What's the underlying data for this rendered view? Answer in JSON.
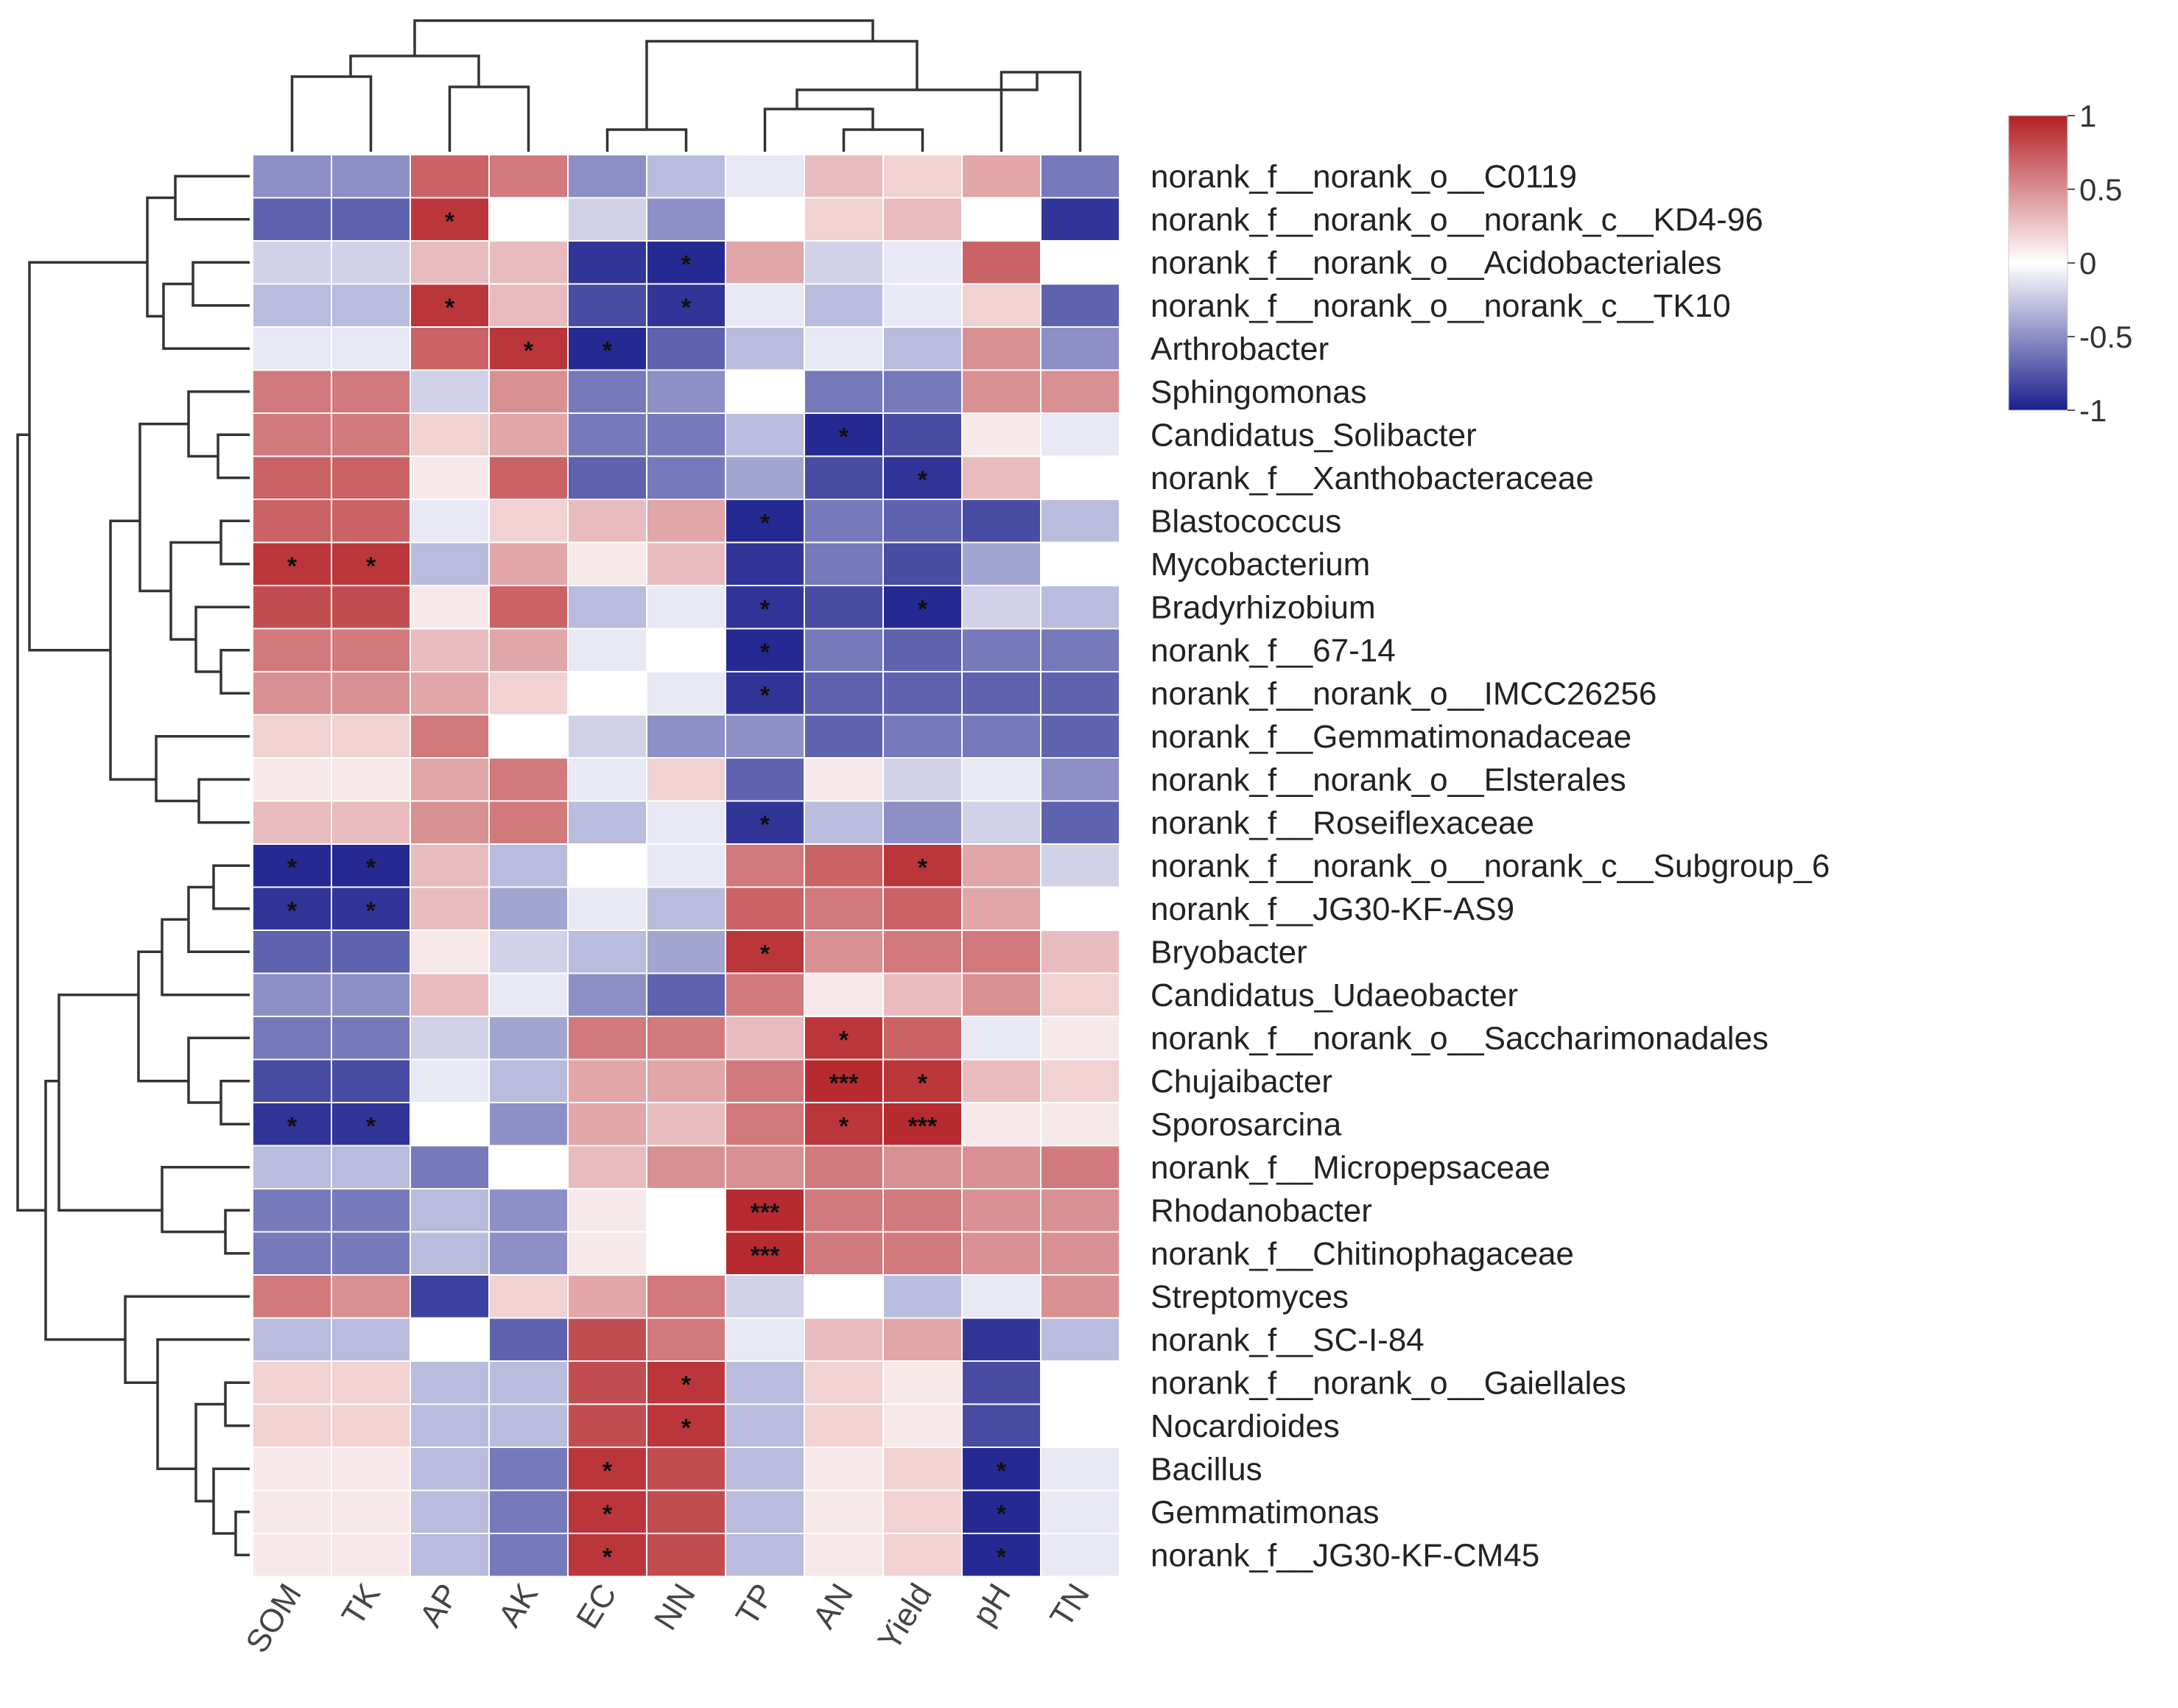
{
  "chart_data": {
    "type": "heatmap",
    "title": "",
    "columns": [
      "SOM",
      "TK",
      "AP",
      "AK",
      "EC",
      "NN",
      "TP",
      "AN",
      "Yield",
      "pH",
      "TN"
    ],
    "rows": [
      "norank_f__norank_o__C0119",
      "norank_f__norank_o__norank_c__KD4-96",
      "norank_f__norank_o__Acidobacteriales",
      "norank_f__norank_o__norank_c__TK10",
      "Arthrobacter",
      "Sphingomonas",
      "Candidatus_Solibacter",
      "norank_f__Xanthobacteraceae",
      "Blastococcus",
      "Mycobacterium",
      "Bradyrhizobium",
      "norank_f__67-14",
      "norank_f__norank_o__IMCC26256",
      "norank_f__Gemmatimonadaceae",
      "norank_f__norank_o__Elsterales",
      "norank_f__Roseiflexaceae",
      "norank_f__norank_o__norank_c__Subgroup_6",
      "norank_f__JG30-KF-AS9",
      "Bryobacter",
      "Candidatus_Udaeobacter",
      "norank_f__norank_o__Saccharimonadales",
      "Chujaibacter",
      "Sporosarcina",
      "norank_f__Micropepsaceae",
      "Rhodanobacter",
      "norank_f__Chitinophagaceae",
      "Streptomyces",
      "norank_f__SC-I-84",
      "norank_f__norank_o__Gaiellales",
      "Nocardioides",
      "Bacillus",
      "Gemmatimonas",
      "norank_f__JG30-KF-CM45"
    ],
    "values": [
      [
        -0.5,
        -0.5,
        0.7,
        0.6,
        -0.5,
        -0.3,
        -0.1,
        0.3,
        0.2,
        0.4,
        -0.6
      ],
      [
        -0.7,
        -0.7,
        0.9,
        0.0,
        -0.2,
        -0.5,
        0.0,
        0.2,
        0.3,
        0.0,
        -0.9
      ],
      [
        -0.2,
        -0.2,
        0.3,
        0.3,
        -0.9,
        -0.95,
        0.4,
        -0.2,
        -0.1,
        0.7,
        0.0
      ],
      [
        -0.3,
        -0.3,
        0.9,
        0.3,
        -0.8,
        -0.9,
        -0.1,
        -0.3,
        -0.1,
        0.2,
        -0.7
      ],
      [
        -0.1,
        -0.1,
        0.7,
        0.9,
        -0.95,
        -0.7,
        -0.3,
        -0.1,
        -0.3,
        0.5,
        -0.5
      ],
      [
        0.6,
        0.6,
        -0.2,
        0.5,
        -0.6,
        -0.5,
        0.0,
        -0.6,
        -0.6,
        0.5,
        0.5
      ],
      [
        0.6,
        0.6,
        0.2,
        0.4,
        -0.6,
        -0.6,
        -0.3,
        -0.95,
        -0.8,
        0.1,
        -0.1
      ],
      [
        0.7,
        0.7,
        0.1,
        0.7,
        -0.7,
        -0.6,
        -0.4,
        -0.8,
        -0.9,
        0.3,
        0.0
      ],
      [
        0.7,
        0.7,
        -0.1,
        0.2,
        0.3,
        0.4,
        -0.95,
        -0.6,
        -0.7,
        -0.8,
        -0.3
      ],
      [
        0.9,
        0.9,
        -0.3,
        0.4,
        0.1,
        0.3,
        -0.9,
        -0.6,
        -0.8,
        -0.4,
        0.0
      ],
      [
        0.8,
        0.8,
        0.1,
        0.7,
        -0.3,
        -0.1,
        -0.9,
        -0.8,
        -0.95,
        -0.2,
        -0.3
      ],
      [
        0.6,
        0.6,
        0.3,
        0.4,
        -0.1,
        0.0,
        -0.95,
        -0.6,
        -0.7,
        -0.6,
        -0.6
      ],
      [
        0.5,
        0.5,
        0.4,
        0.2,
        0.0,
        -0.1,
        -0.9,
        -0.7,
        -0.7,
        -0.7,
        -0.7
      ],
      [
        0.2,
        0.2,
        0.6,
        0.0,
        -0.2,
        -0.5,
        -0.5,
        -0.7,
        -0.6,
        -0.6,
        -0.7
      ],
      [
        0.1,
        0.1,
        0.4,
        0.6,
        -0.1,
        0.2,
        -0.7,
        0.1,
        -0.2,
        -0.1,
        -0.5
      ],
      [
        0.3,
        0.3,
        0.5,
        0.6,
        -0.3,
        -0.1,
        -0.9,
        -0.3,
        -0.5,
        -0.2,
        -0.7
      ],
      [
        -0.95,
        -0.95,
        0.3,
        -0.3,
        0.0,
        -0.1,
        0.6,
        0.7,
        0.9,
        0.4,
        -0.2
      ],
      [
        -0.9,
        -0.9,
        0.3,
        -0.4,
        -0.1,
        -0.3,
        0.7,
        0.6,
        0.7,
        0.4,
        0.0
      ],
      [
        -0.7,
        -0.7,
        0.1,
        -0.2,
        -0.3,
        -0.4,
        0.9,
        0.5,
        0.6,
        0.6,
        0.3
      ],
      [
        -0.5,
        -0.5,
        0.3,
        -0.1,
        -0.5,
        -0.7,
        0.6,
        0.1,
        0.3,
        0.5,
        0.2
      ],
      [
        -0.6,
        -0.6,
        -0.2,
        -0.4,
        0.6,
        0.6,
        0.3,
        0.9,
        0.7,
        -0.1,
        0.1
      ],
      [
        -0.8,
        -0.8,
        -0.1,
        -0.3,
        0.4,
        0.4,
        0.6,
        0.95,
        0.9,
        0.3,
        0.2
      ],
      [
        -0.9,
        -0.9,
        0.0,
        -0.5,
        0.4,
        0.3,
        0.6,
        0.9,
        0.95,
        0.1,
        0.1
      ],
      [
        -0.3,
        -0.3,
        -0.6,
        0.0,
        0.3,
        0.5,
        0.5,
        0.6,
        0.5,
        0.5,
        0.6
      ],
      [
        -0.6,
        -0.6,
        -0.3,
        -0.5,
        0.1,
        0.0,
        0.95,
        0.6,
        0.6,
        0.5,
        0.5
      ],
      [
        -0.6,
        -0.6,
        -0.3,
        -0.5,
        0.1,
        0.0,
        0.95,
        0.6,
        0.6,
        0.5,
        0.5
      ],
      [
        0.6,
        0.5,
        -0.85,
        0.2,
        0.4,
        0.6,
        -0.2,
        0.0,
        -0.3,
        -0.1,
        0.5
      ],
      [
        -0.3,
        -0.3,
        0.0,
        -0.7,
        0.8,
        0.6,
        -0.1,
        0.3,
        0.4,
        -0.9,
        -0.3
      ],
      [
        0.2,
        0.2,
        -0.3,
        -0.3,
        0.8,
        0.9,
        -0.3,
        0.2,
        0.1,
        -0.8,
        0.0
      ],
      [
        0.2,
        0.2,
        -0.3,
        -0.3,
        0.8,
        0.9,
        -0.3,
        0.2,
        0.1,
        -0.8,
        0.0
      ],
      [
        0.1,
        0.1,
        -0.3,
        -0.6,
        0.9,
        0.8,
        -0.3,
        0.1,
        0.2,
        -0.95,
        -0.1
      ],
      [
        0.1,
        0.1,
        -0.3,
        -0.6,
        0.9,
        0.8,
        -0.3,
        0.1,
        0.2,
        -0.95,
        -0.1
      ],
      [
        0.1,
        0.1,
        -0.3,
        -0.6,
        0.9,
        0.8,
        -0.3,
        0.1,
        0.2,
        -0.95,
        -0.1
      ]
    ],
    "significance": [
      [
        "",
        "",
        "",
        "",
        "",
        "",
        "",
        "",
        "",
        "",
        ""
      ],
      [
        "",
        "",
        "*",
        "",
        "",
        "",
        "",
        "",
        "",
        "",
        ""
      ],
      [
        "",
        "",
        "",
        "",
        "",
        "*",
        "",
        "",
        "",
        "",
        ""
      ],
      [
        "",
        "",
        "*",
        "",
        "",
        "*",
        "",
        "",
        "",
        "",
        ""
      ],
      [
        "",
        "",
        "",
        "*",
        "*",
        "",
        "",
        "",
        "",
        "",
        ""
      ],
      [
        "",
        "",
        "",
        "",
        "",
        "",
        "",
        "",
        "",
        "",
        ""
      ],
      [
        "",
        "",
        "",
        "",
        "",
        "",
        "",
        "*",
        "",
        "",
        ""
      ],
      [
        "",
        "",
        "",
        "",
        "",
        "",
        "",
        "",
        "*",
        "",
        ""
      ],
      [
        "",
        "",
        "",
        "",
        "",
        "",
        "*",
        "",
        "",
        "",
        ""
      ],
      [
        "*",
        "*",
        "",
        "",
        "",
        "",
        "",
        "",
        "",
        "",
        ""
      ],
      [
        "",
        "",
        "",
        "",
        "",
        "",
        "*",
        "",
        "*",
        "",
        ""
      ],
      [
        "",
        "",
        "",
        "",
        "",
        "",
        "*",
        "",
        "",
        "",
        ""
      ],
      [
        "",
        "",
        "",
        "",
        "",
        "",
        "*",
        "",
        "",
        "",
        ""
      ],
      [
        "",
        "",
        "",
        "",
        "",
        "",
        "",
        "",
        "",
        "",
        ""
      ],
      [
        "",
        "",
        "",
        "",
        "",
        "",
        "",
        "",
        "",
        "",
        ""
      ],
      [
        "",
        "",
        "",
        "",
        "",
        "",
        "*",
        "",
        "",
        "",
        ""
      ],
      [
        "*",
        "*",
        "",
        "",
        "",
        "",
        "",
        "",
        "*",
        "",
        ""
      ],
      [
        "*",
        "*",
        "",
        "",
        "",
        "",
        "",
        "",
        "",
        "",
        ""
      ],
      [
        "",
        "",
        "",
        "",
        "",
        "",
        "*",
        "",
        "",
        "",
        ""
      ],
      [
        "",
        "",
        "",
        "",
        "",
        "",
        "",
        "",
        "",
        "",
        ""
      ],
      [
        "",
        "",
        "",
        "",
        "",
        "",
        "",
        "*",
        "",
        "",
        ""
      ],
      [
        "",
        "",
        "",
        "",
        "",
        "",
        "",
        "***",
        "*",
        "",
        ""
      ],
      [
        "*",
        "*",
        "",
        "",
        "",
        "",
        "",
        "*",
        "***",
        "",
        ""
      ],
      [
        "",
        "",
        "",
        "",
        "",
        "",
        "",
        "",
        "",
        "",
        ""
      ],
      [
        "",
        "",
        "",
        "",
        "",
        "",
        "***",
        "",
        "",
        "",
        ""
      ],
      [
        "",
        "",
        "",
        "",
        "",
        "",
        "***",
        "",
        "",
        "",
        ""
      ],
      [
        "",
        "",
        "",
        "",
        "",
        "",
        "",
        "",
        "",
        "",
        ""
      ],
      [
        "",
        "",
        "",
        "",
        "",
        "",
        "",
        "",
        "",
        "",
        ""
      ],
      [
        "",
        "",
        "",
        "",
        "",
        "*",
        "",
        "",
        "",
        "",
        ""
      ],
      [
        "",
        "",
        "",
        "",
        "",
        "*",
        "",
        "",
        "",
        "",
        ""
      ],
      [
        "",
        "",
        "",
        "",
        "*",
        "",
        "",
        "",
        "",
        "*",
        ""
      ],
      [
        "",
        "",
        "",
        "",
        "*",
        "",
        "",
        "",
        "",
        "*",
        ""
      ],
      [
        "",
        "",
        "",
        "",
        "*",
        "",
        "",
        "",
        "",
        "*",
        ""
      ]
    ],
    "color_scale": {
      "range": [
        -1,
        1
      ],
      "low_color": "#1a1f8c",
      "mid_color": "#ffffff",
      "high_color": "#b32025",
      "ticks": [
        1,
        0.5,
        0,
        -0.5,
        -1
      ],
      "tick_labels": [
        "1",
        "0.5",
        "0",
        "-0.5",
        "-1"
      ]
    },
    "legend_position": "top-right"
  }
}
